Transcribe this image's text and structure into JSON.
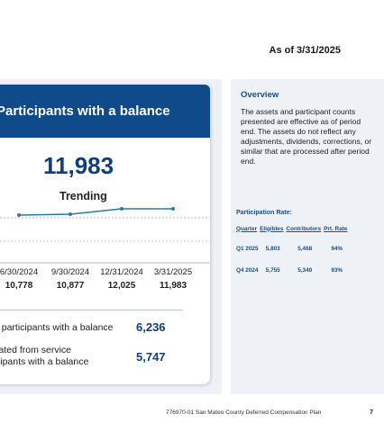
{
  "as_of": "As of 3/31/2025",
  "card": {
    "title": "Participants with a balance",
    "total": "11,983",
    "trending_label": "Trending",
    "dates": [
      "6/30/2024",
      "9/30/2024",
      "12/31/2024",
      "3/31/2025"
    ],
    "values": [
      "10,778",
      "10,877",
      "12,025",
      "11,983"
    ],
    "stat1_label": "e participants with a balance",
    "stat1_value": "6,236",
    "stat2_label_line1": "rated from service",
    "stat2_label_line2": "cipants with a balance",
    "stat2_value": "5,747"
  },
  "overview": {
    "title": "Overview",
    "text": "The assets and participant counts presented are effective as of period end. The assets do not reflect any adjustments, dividends, corrections, or similar that are processed after period end.",
    "rate_title": "Participation Rate:",
    "headers": [
      "Quarter",
      "Eligibles",
      "Contributors",
      "Prt. Rate"
    ],
    "rows": [
      [
        "Q1 2025",
        "5,803",
        "5,468",
        "94%"
      ],
      [
        "Q4 2024",
        "5,755",
        "5,340",
        "93%"
      ]
    ]
  },
  "footer": {
    "text": "776970-01 San Mateo County Deferred Compensation Plan",
    "page": "7"
  },
  "colors": {
    "header_blue": "#0f4a8a",
    "value_blue": "#0f3e78",
    "line": "#2b7aa3"
  }
}
